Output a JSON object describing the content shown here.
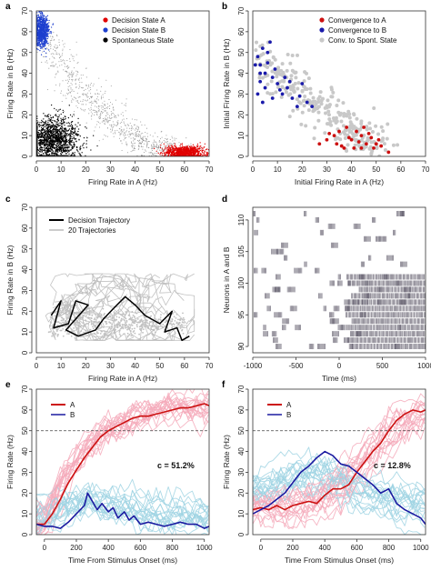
{
  "chart_data": [
    {
      "panel": "a",
      "type": "scatter",
      "xlabel": "Firing Rate in A (Hz)",
      "ylabel": "Firing Rate in B (Hz)",
      "xlim": [
        0,
        70
      ],
      "ylim": [
        0,
        70
      ],
      "xticks": [
        0,
        10,
        20,
        30,
        40,
        50,
        60,
        70
      ],
      "yticks": [
        0,
        10,
        20,
        30,
        40,
        50,
        60,
        70
      ],
      "legend_position": "top-right",
      "series": [
        {
          "name": "Decision State A",
          "color": "#e00000",
          "cluster": {
            "cx": 60,
            "cy": 2,
            "sx": 4,
            "sy": 1.5
          }
        },
        {
          "name": "Decision State B",
          "color": "#1d3fcf",
          "cluster": {
            "cx": 2,
            "cy": 60,
            "sx": 1.5,
            "sy": 4
          }
        },
        {
          "name": "Spontaneous State",
          "color": "#000000",
          "cluster": {
            "cx": 7,
            "cy": 8,
            "sx": 5,
            "sy": 5
          }
        }
      ]
    },
    {
      "panel": "b",
      "type": "scatter",
      "xlabel": "Initial Firing Rate in A (Hz)",
      "ylabel": "Initial Firing Rate in B (Hz)",
      "xlim": [
        0,
        70
      ],
      "ylim": [
        0,
        70
      ],
      "xticks": [
        0,
        10,
        20,
        30,
        40,
        50,
        60,
        70
      ],
      "yticks": [
        0,
        10,
        20,
        30,
        40,
        50,
        60,
        70
      ],
      "legend_position": "top-right",
      "series": [
        {
          "name": "Convergence to A",
          "color": "#cc1010",
          "points": [
            [
              40,
              8
            ],
            [
              42,
              12
            ],
            [
              44,
              10
            ],
            [
              46,
              6
            ],
            [
              48,
              9
            ],
            [
              50,
              6
            ],
            [
              52,
              5
            ],
            [
              55,
              2
            ],
            [
              38,
              14
            ],
            [
              36,
              5
            ],
            [
              45,
              14
            ],
            [
              33,
              10
            ],
            [
              41,
              4
            ],
            [
              47,
              11
            ],
            [
              30,
              8
            ],
            [
              27,
              6
            ],
            [
              43,
              7
            ],
            [
              49,
              4
            ],
            [
              35,
              12
            ],
            [
              39,
              9
            ],
            [
              51,
              8
            ],
            [
              34,
              6
            ],
            [
              31,
              11
            ],
            [
              37,
              4
            ],
            [
              44,
              4
            ]
          ]
        },
        {
          "name": "Convergence to B",
          "color": "#1a1aaa",
          "points": [
            [
              2,
              48
            ],
            [
              3,
              44
            ],
            [
              4,
              52
            ],
            [
              5,
              40
            ],
            [
              3,
              36
            ],
            [
              6,
              45
            ],
            [
              8,
              38
            ],
            [
              10,
              35
            ],
            [
              12,
              30
            ],
            [
              14,
              33
            ],
            [
              7,
              55
            ],
            [
              2,
              30
            ],
            [
              4,
              26
            ],
            [
              16,
              28
            ],
            [
              18,
              24
            ],
            [
              20,
              35
            ],
            [
              22,
              26
            ],
            [
              5,
              33
            ],
            [
              9,
              42
            ],
            [
              11,
              32
            ],
            [
              3,
              40
            ],
            [
              6,
              50
            ],
            [
              13,
              38
            ],
            [
              24,
              24
            ],
            [
              8,
              28
            ],
            [
              1,
              44
            ],
            [
              15,
              36
            ],
            [
              19,
              29
            ]
          ]
        },
        {
          "name": "Conv. to Spont. State",
          "color": "#c8c8c8",
          "cluster": {
            "cx": 20,
            "cy": 18,
            "sx": 10,
            "sy": 9
          }
        }
      ]
    },
    {
      "panel": "c",
      "type": "line",
      "xlabel": "Firing Rate in A (Hz)",
      "ylabel": "Firing Rate in B (Hz)",
      "xlim": [
        0,
        70
      ],
      "ylim": [
        0,
        70
      ],
      "xticks": [
        0,
        10,
        20,
        30,
        40,
        50,
        60,
        70
      ],
      "yticks": [
        0,
        10,
        20,
        30,
        40,
        50,
        60,
        70
      ],
      "legend_position": "top-left",
      "series": [
        {
          "name": "Decision Trajectory",
          "color": "#000000",
          "points": [
            [
              6,
              18
            ],
            [
              10,
              25
            ],
            [
              7,
              12
            ],
            [
              13,
              14
            ],
            [
              16,
              25
            ],
            [
              21,
              23
            ],
            [
              12,
              11
            ],
            [
              17,
              8
            ],
            [
              24,
              11
            ],
            [
              27,
              16
            ],
            [
              31,
              21
            ],
            [
              36,
              27
            ],
            [
              40,
              23
            ],
            [
              44,
              18
            ],
            [
              50,
              14
            ],
            [
              55,
              20
            ],
            [
              52,
              10
            ],
            [
              57,
              12
            ],
            [
              59,
              6
            ],
            [
              62,
              8
            ]
          ]
        },
        {
          "name": "20 Trajectories",
          "color": "#bbbbbb",
          "count": 20
        }
      ]
    },
    {
      "panel": "d",
      "type": "raster",
      "xlabel": "Time (ms)",
      "ylabel": "Neurons in A and B",
      "xlim": [
        -1000,
        1000
      ],
      "ylim": [
        89,
        112
      ],
      "xticks": [
        -1000,
        -500,
        0,
        500,
        1000
      ],
      "yticks": [
        90,
        95,
        100,
        105,
        110
      ],
      "spikes_dense_from_neuron": 100,
      "spikes_dense_from_ms": 0
    },
    {
      "panel": "e",
      "type": "line",
      "xlabel": "Time From Stimulus Onset (ms)",
      "ylabel": "Firing Rate (Hz)",
      "xlim": [
        -50,
        1030
      ],
      "ylim": [
        0,
        70
      ],
      "xticks": [
        0,
        200,
        400,
        600,
        800,
        1000
      ],
      "yticks": [
        0,
        10,
        20,
        30,
        40,
        50,
        60,
        70
      ],
      "threshold": 50,
      "annotation": "c = 51.2%",
      "legend_position": "top-left",
      "series": [
        {
          "name": "A",
          "color": "#cc1111",
          "points": [
            [
              -50,
              5
            ],
            [
              0,
              5
            ],
            [
              50,
              10
            ],
            [
              100,
              17
            ],
            [
              150,
              25
            ],
            [
              200,
              31
            ],
            [
              250,
              37
            ],
            [
              300,
              42
            ],
            [
              350,
              47
            ],
            [
              400,
              50
            ],
            [
              450,
              52
            ],
            [
              500,
              54
            ],
            [
              550,
              56
            ],
            [
              600,
              57
            ],
            [
              650,
              57
            ],
            [
              700,
              58
            ],
            [
              750,
              59
            ],
            [
              800,
              60
            ],
            [
              850,
              61
            ],
            [
              900,
              61
            ],
            [
              950,
              62
            ],
            [
              1000,
              63
            ],
            [
              1030,
              62
            ]
          ]
        },
        {
          "name": "B",
          "color": "#1a1aa0",
          "points": [
            [
              -50,
              5
            ],
            [
              0,
              4
            ],
            [
              50,
              4
            ],
            [
              100,
              3
            ],
            [
              150,
              6
            ],
            [
              200,
              10
            ],
            [
              250,
              14
            ],
            [
              270,
              20
            ],
            [
              300,
              16
            ],
            [
              330,
              12
            ],
            [
              360,
              15
            ],
            [
              400,
              11
            ],
            [
              430,
              13
            ],
            [
              460,
              8
            ],
            [
              500,
              11
            ],
            [
              530,
              7
            ],
            [
              560,
              9
            ],
            [
              600,
              5
            ],
            [
              650,
              6
            ],
            [
              700,
              5
            ],
            [
              750,
              4
            ],
            [
              800,
              5
            ],
            [
              850,
              6
            ],
            [
              900,
              5
            ],
            [
              950,
              5
            ],
            [
              1000,
              3
            ],
            [
              1030,
              4
            ]
          ]
        }
      ]
    },
    {
      "panel": "f",
      "type": "line",
      "xlabel": "Time From Stimulus Onset (ms)",
      "ylabel": "Firing Rate (Hz)",
      "xlim": [
        -50,
        1030
      ],
      "ylim": [
        0,
        70
      ],
      "xticks": [
        0,
        200,
        400,
        600,
        800,
        1000
      ],
      "yticks": [
        0,
        10,
        20,
        30,
        40,
        50,
        60,
        70
      ],
      "threshold": 50,
      "annotation": "c = 12.8%",
      "legend_position": "top-left",
      "series": [
        {
          "name": "A",
          "color": "#cc1111",
          "points": [
            [
              -50,
              12
            ],
            [
              0,
              13
            ],
            [
              50,
              12
            ],
            [
              100,
              14
            ],
            [
              150,
              12
            ],
            [
              200,
              14
            ],
            [
              250,
              15
            ],
            [
              300,
              16
            ],
            [
              350,
              15
            ],
            [
              400,
              19
            ],
            [
              450,
              22
            ],
            [
              500,
              22
            ],
            [
              550,
              24
            ],
            [
              600,
              30
            ],
            [
              650,
              35
            ],
            [
              700,
              40
            ],
            [
              750,
              44
            ],
            [
              800,
              50
            ],
            [
              850,
              55
            ],
            [
              900,
              58
            ],
            [
              950,
              60
            ],
            [
              1000,
              59
            ],
            [
              1030,
              60
            ]
          ]
        },
        {
          "name": "B",
          "color": "#1a1aa0",
          "points": [
            [
              -50,
              10
            ],
            [
              0,
              12
            ],
            [
              50,
              14
            ],
            [
              100,
              17
            ],
            [
              150,
              20
            ],
            [
              200,
              25
            ],
            [
              250,
              30
            ],
            [
              300,
              33
            ],
            [
              350,
              37
            ],
            [
              400,
              40
            ],
            [
              450,
              38
            ],
            [
              500,
              34
            ],
            [
              550,
              33
            ],
            [
              600,
              30
            ],
            [
              650,
              27
            ],
            [
              700,
              24
            ],
            [
              750,
              20
            ],
            [
              800,
              22
            ],
            [
              850,
              15
            ],
            [
              900,
              12
            ],
            [
              950,
              10
            ],
            [
              1000,
              8
            ],
            [
              1030,
              5
            ]
          ]
        }
      ]
    }
  ]
}
